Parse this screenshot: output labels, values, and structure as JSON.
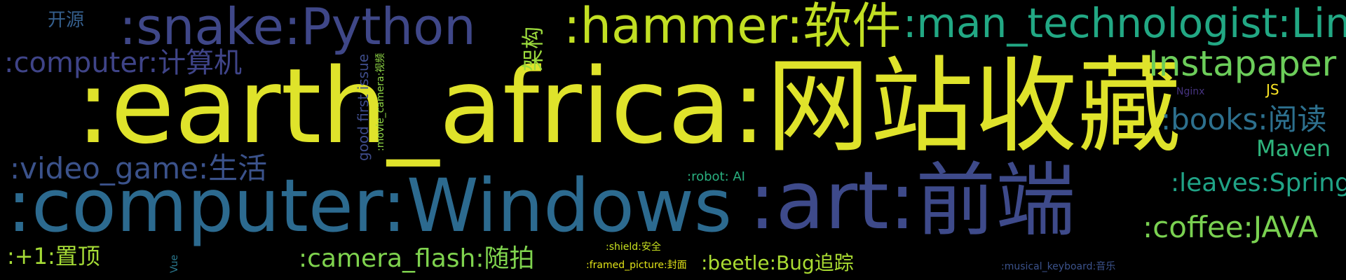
{
  "words": [
    {
      "text": ":earth_africa:网站收藏",
      "color": "#dfe32b"
    },
    {
      "text": ":computer:Windows",
      "color": "#2c6a8f"
    },
    {
      "text": ":art:前端",
      "color": "#3e4a8a"
    },
    {
      "text": ":snake:Python",
      "color": "#3f4788"
    },
    {
      "text": ":hammer:软件",
      "color": "#c2df23"
    },
    {
      "text": ":man_technologist:Linux",
      "color": "#22a884"
    },
    {
      "text": "Instapaper",
      "color": "#6ccd5a"
    },
    {
      "text": ":computer:计算机",
      "color": "#3f4488"
    },
    {
      "text": ":video_game:生活",
      "color": "#3b528b"
    },
    {
      "text": ":books:阅读",
      "color": "#2d708e"
    },
    {
      "text": "Maven",
      "color": "#2fb47c"
    },
    {
      "text": ":leaves:Spring",
      "color": "#20a386"
    },
    {
      "text": ":coffee:JAVA",
      "color": "#7ad151"
    },
    {
      "text": ":+1:置顶",
      "color": "#a5db36"
    },
    {
      "text": ":camera_flash:随拍",
      "color": "#7fd34e"
    },
    {
      "text": ":beetle:Bug追踪",
      "color": "#aadc32"
    },
    {
      "text": "开源",
      "color": "#355f8d"
    },
    {
      "text": "架构",
      "color": "#9bd93c"
    },
    {
      "text": "good first issue",
      "color": "#3e4c8a"
    },
    {
      "text": ":movie_camera:视频",
      "color": "#8ed645"
    },
    {
      "text": ":robot: AI",
      "color": "#29af7f"
    },
    {
      "text": "Nginx",
      "color": "#46337f"
    },
    {
      "text": "JS",
      "color": "#fde725"
    },
    {
      "text": ":shield:安全",
      "color": "#c8e020"
    },
    {
      "text": ":framed_picture:封面",
      "color": "#e2e418"
    },
    {
      "text": ":musical_keyboard:音乐",
      "color": "#3b528b"
    },
    {
      "text": "Vue",
      "color": "#2a788e"
    }
  ]
}
